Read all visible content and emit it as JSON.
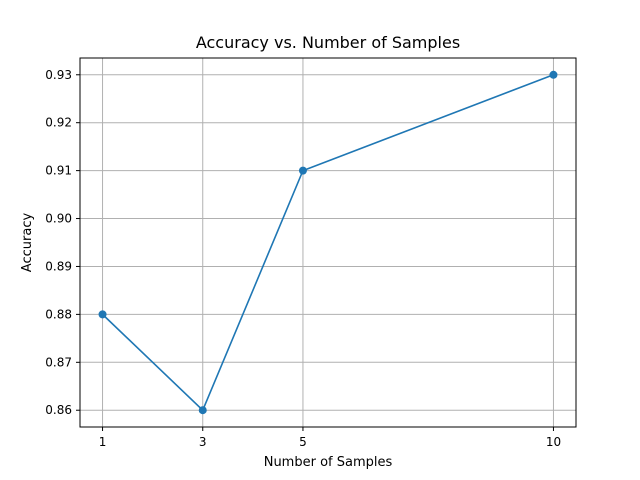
{
  "chart_data": {
    "type": "line",
    "title": "Accuracy vs. Number of Samples",
    "xlabel": "Number of Samples",
    "ylabel": "Accuracy",
    "x": [
      1,
      3,
      5,
      10
    ],
    "series": [
      {
        "values": [
          0.88,
          0.86,
          0.91,
          0.93
        ]
      }
    ],
    "xticks": [
      1,
      3,
      5,
      10
    ],
    "yticks": [
      0.86,
      0.87,
      0.88,
      0.89,
      0.9,
      0.91,
      0.92,
      0.93
    ],
    "ytick_labels": [
      "0.86",
      "0.87",
      "0.88",
      "0.89",
      "0.90",
      "0.91",
      "0.92",
      "0.93"
    ],
    "xlim": [
      0.55,
      10.45
    ],
    "ylim": [
      0.8565,
      0.9335
    ],
    "grid": true,
    "marker": "circle",
    "line_color": "#1f77b4"
  }
}
